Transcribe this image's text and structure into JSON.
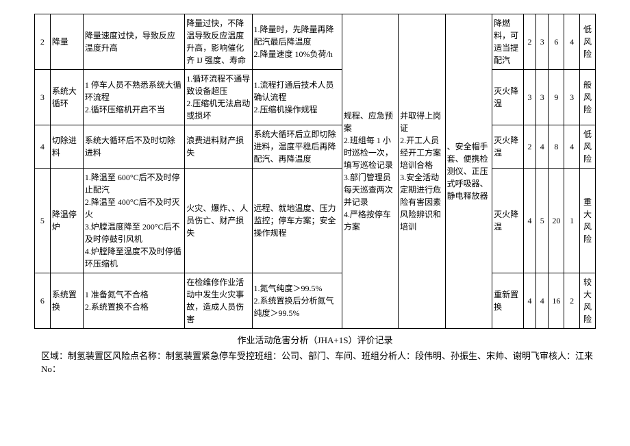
{
  "rows": [
    {
      "idx": "2",
      "step": "降量",
      "cause": "降量速度过快，导致反应温度升高",
      "cons": "降量过快，不降温导致反应温度升高，影响催化齐 IJ 强度、寿命",
      "meas": "1.降量时，先降量再降配汽最后降温度\n2.降量速度 10%负荷/h",
      "emerg": "灭火降温",
      "n1": "2",
      "n2": "3",
      "n3": "6",
      "n4": "4",
      "risk": "低风险"
    },
    {
      "idx": "3",
      "step": "系统大循环",
      "cause": "1 停车人员不熟悉系统大循环流程\n2.循环压缩机开启不当",
      "cons": "1.循环流程不通导致设备超压\n2.压缩机无法启动或损坏",
      "meas": "1.流程打通后技术人员确认流程\n2.压缩机操作规程",
      "emerg": "灭火降温",
      "n1": "3",
      "n2": "3",
      "n3": "9",
      "n4": "3",
      "risk": "般风险"
    },
    {
      "idx": "4",
      "step": "切除进料",
      "cause": "系统大循环后不及时切除进料",
      "cons": "浪费进料财产损失",
      "meas": "系统大循环后立即切除进料，温度平稳后再降配汽、再降温度",
      "emerg": "灭火降温",
      "n1": "2",
      "n2": "4",
      "n3": "8",
      "n4": "4",
      "risk": "低风险"
    },
    {
      "idx": "5",
      "step": "降温停炉",
      "cause": "1.降温至 600°C后不及时停止配汽\n2.降温至 400°C后不及时灭火\n3.炉膛温度降至 200°C后不及时停鼓引风机\n4.炉膛降至温度不及时停循环压缩机",
      "cons": "火灾、爆炸、、人员伤亡、财产损失",
      "meas": "远程、就地温度、压力监控；停车方案；安全操作规程",
      "emerg": "灭火降温",
      "n1": "4",
      "n2": "5",
      "n3": "20",
      "n4": "1",
      "risk": "重大风险"
    },
    {
      "idx": "6",
      "step": "系统置换",
      "cause": "1 准备氮气不合格\n2.系统置换不合格",
      "cons": "在检维修作业活动中发生火灾事故，造成人员伤害",
      "meas": "1.氮气纯度＞99.5%\n2.系统置换后分析氮气纯度＞99.5%",
      "emerg": "重新置换",
      "n1": "4",
      "n2": "4",
      "n3": "16",
      "n4": "2",
      "risk": "较大风险"
    }
  ],
  "merged": {
    "mgmt": "规程、应急预案\n2.班组每 1 小时巡检一次，填写巡检记录\n3.部门管理员每天巡查两次并记录\n4.严格按停车方案",
    "train": "并取得上岗证\n2.开工人员经开工方案培训合格\n3.安全活动定期进行危险有害因素风险辨识和培训",
    "ppe": "、安全帽手套、便携检测仪、正压式呼吸器、静电释放器",
    "fuel": "降燃料，可适当提配汽"
  },
  "footer": {
    "title": "作业活动危害分析（JHA+1S）评价记录",
    "meta": "区域：制氢装置区风险点名称：制氢装置紧急停车受控班组：公司、部门、车间、班组分析人：段伟明、孙振生、宋帅、谢明飞审核人：江来 No："
  },
  "colors": {
    "border": "#000000",
    "bg": "#ffffff",
    "text": "#000000"
  },
  "typography": {
    "font_family": "SimSun",
    "body_pt": 12,
    "line_height": 1.5
  }
}
